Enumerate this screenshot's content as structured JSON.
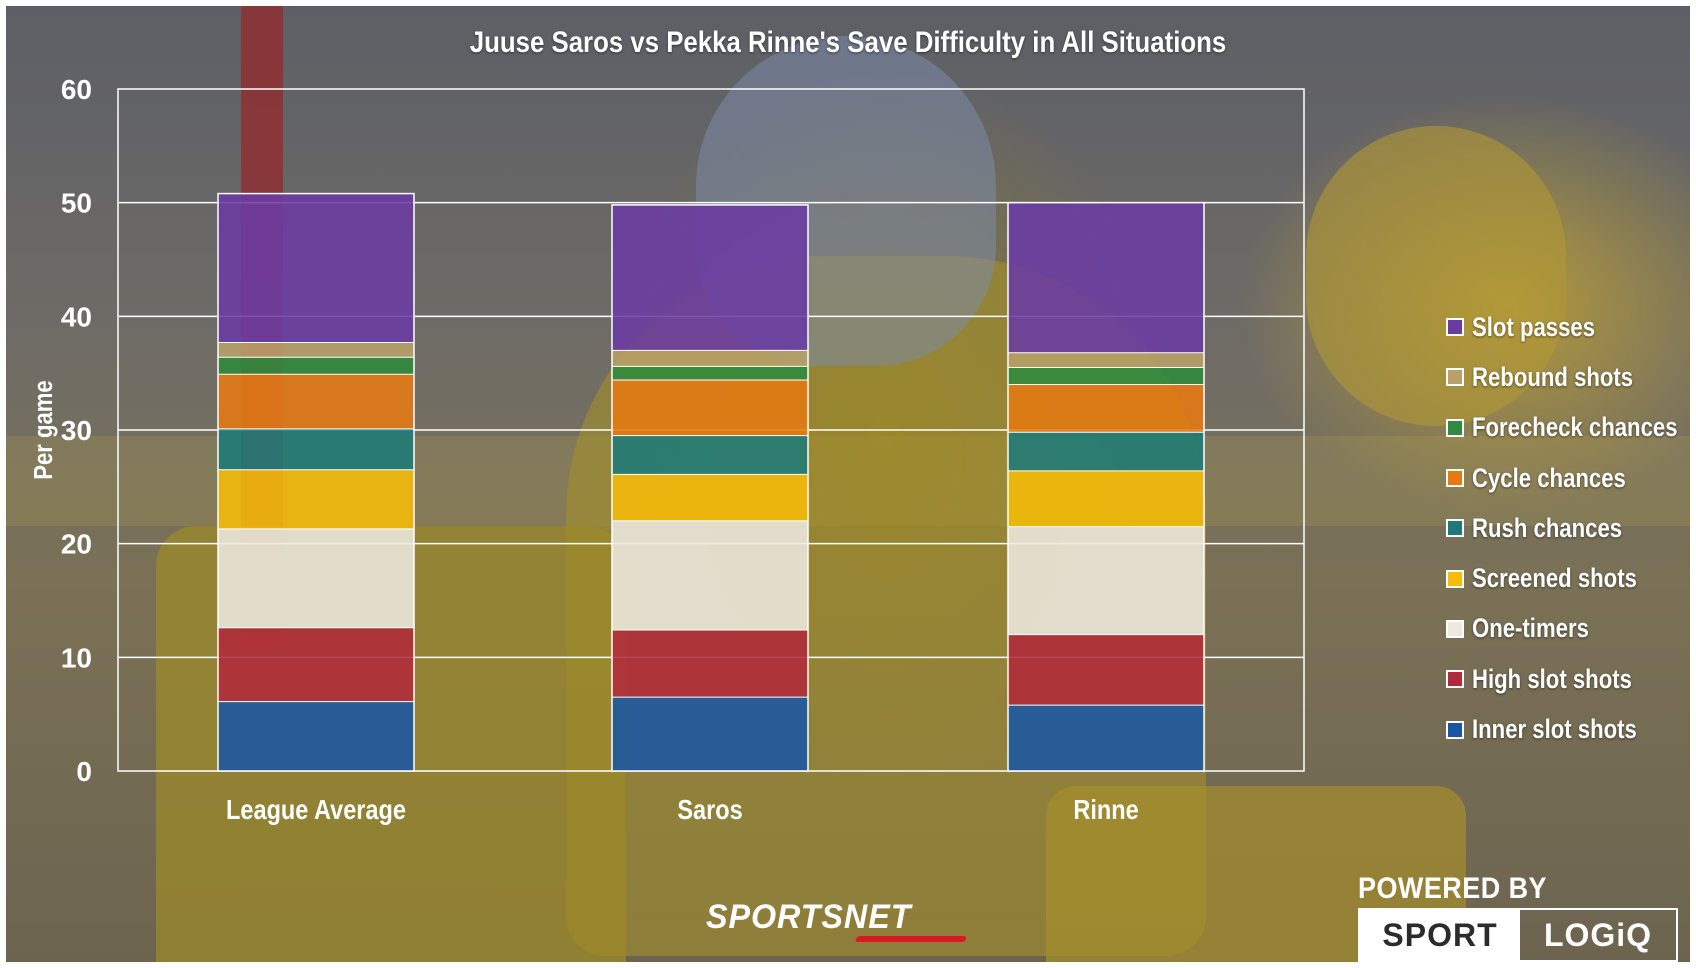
{
  "chart_data": {
    "type": "bar",
    "stacked": true,
    "title": "Juuse Saros vs Pekka Rinne's Save Difficulty in All Situations",
    "xlabel": "",
    "ylabel": "Per game",
    "ylim": [
      0,
      60
    ],
    "yticks": [
      0,
      10,
      20,
      30,
      40,
      50,
      60
    ],
    "grid": true,
    "legend_position": "right",
    "categories": [
      "League Average",
      "Saros",
      "Rinne"
    ],
    "series": [
      {
        "name": "Inner slot shots",
        "color": "#1a56a3",
        "values": [
          6.1,
          6.5,
          5.8
        ]
      },
      {
        "name": "High slot shots",
        "color": "#b02a3a",
        "values": [
          6.5,
          5.9,
          6.2
        ]
      },
      {
        "name": "One-timers",
        "color": "#ede9e0",
        "values": [
          8.7,
          9.6,
          9.5
        ]
      },
      {
        "name": "Screened shots",
        "color": "#f5bc08",
        "values": [
          5.2,
          4.1,
          4.9
        ]
      },
      {
        "name": "Rush chances",
        "color": "#1e7a78",
        "values": [
          3.6,
          3.4,
          3.4
        ]
      },
      {
        "name": "Cycle chances",
        "color": "#e57a12",
        "values": [
          4.8,
          4.9,
          4.2
        ]
      },
      {
        "name": "Forecheck chances",
        "color": "#2e8a3e",
        "values": [
          1.5,
          1.2,
          1.5
        ]
      },
      {
        "name": "Rebound shots",
        "color": "#b8a068",
        "values": [
          1.3,
          1.4,
          1.3
        ]
      },
      {
        "name": "Slot passes",
        "color": "#6a3ba3",
        "values": [
          13.1,
          12.8,
          13.2
        ]
      }
    ]
  },
  "legend_order": [
    8,
    7,
    6,
    5,
    4,
    3,
    2,
    1,
    0
  ],
  "branding": {
    "sportsnet": "SPORTSNET",
    "powered_by": "POWERED BY",
    "sport": "SPORT",
    "logiq": "LOGiQ"
  }
}
